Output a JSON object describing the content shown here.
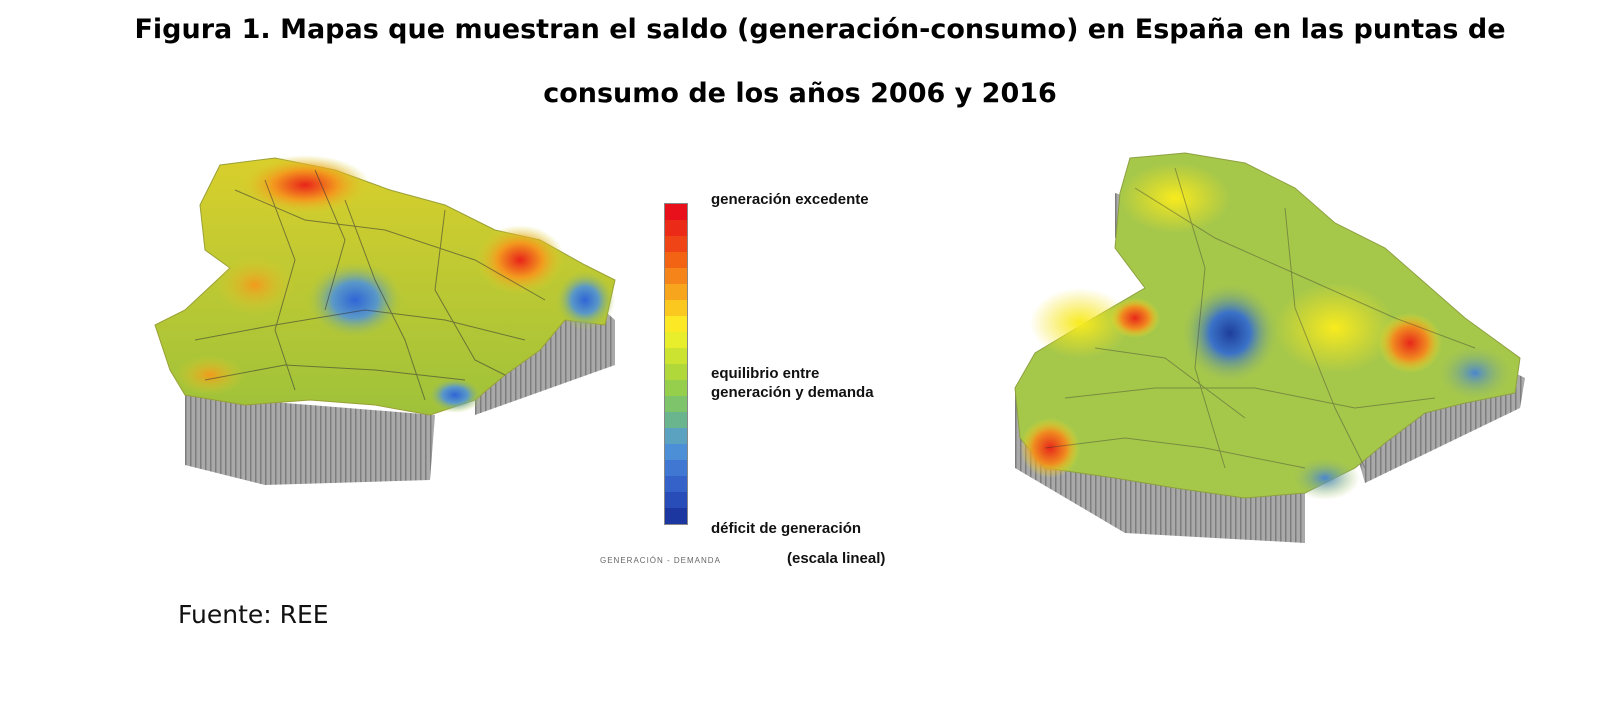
{
  "figure": {
    "title_line1": "Figura 1. Mapas que muestran el saldo (generación-consumo) en España en las puntas de",
    "title_line2": "consumo de los años 2006 y 2016",
    "source": "Fuente: REE"
  },
  "legend": {
    "top_label": "generación excedente",
    "mid_label_line1": "equilibrio entre",
    "mid_label_line2": "generación y demanda",
    "bottom_label": "déficit de generación",
    "scale_note": "(escala lineal)",
    "axis_caption": "GENERACIÓN - DEMANDA",
    "scale_colors": [
      "#e8101a",
      "#ec2a18",
      "#ee4416",
      "#f26414",
      "#f5841a",
      "#f8a51e",
      "#fbc820",
      "#fde826",
      "#e9ee2c",
      "#cde332",
      "#b0d83a",
      "#95cf4c",
      "#7ec46a",
      "#6bb58e",
      "#5aa2c0",
      "#4c8fd6",
      "#3f77d2",
      "#3462c8",
      "#284cb8",
      "#1c38a0"
    ]
  },
  "maps": [
    {
      "id": "2006",
      "colors": {
        "base": "#b6cc2e",
        "hot": "#e8341a",
        "warm": "#f2a020",
        "cold": "#3a74d4",
        "side": "#a9a9a9"
      }
    },
    {
      "id": "2016",
      "colors": {
        "base": "#a6c84a",
        "hot": "#e83a18",
        "warm": "#f5e020",
        "cold": "#2a52b0",
        "side": "#a9a9a9"
      }
    }
  ]
}
